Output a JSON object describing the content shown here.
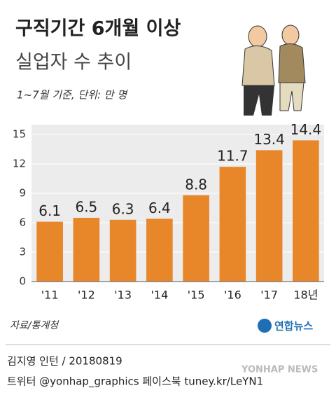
{
  "chart_data": {
    "type": "bar",
    "title": "구직기간 6개월 이상",
    "subtitle": "실업자 수 추이",
    "note": "1~7월 기준, 단위: 만 명",
    "categories": [
      "'11",
      "'12",
      "'13",
      "'14",
      "'15",
      "'16",
      "'17",
      "18년"
    ],
    "values": [
      6.1,
      6.5,
      6.3,
      6.4,
      8.8,
      11.7,
      13.4,
      14.4
    ],
    "color": "#e8862a",
    "ylim": [
      0,
      16
    ],
    "yticks": [
      0,
      3,
      6,
      9,
      12,
      15
    ],
    "grid": true,
    "source": "자료/통계청",
    "logo": "연합뉴스",
    "credit": "김지영 인턴 / 20180819",
    "social": "트위터 @yonhap_graphics  페이스북 tuney.kr/LeYN1",
    "watermark": "YONHAP NEWS"
  }
}
